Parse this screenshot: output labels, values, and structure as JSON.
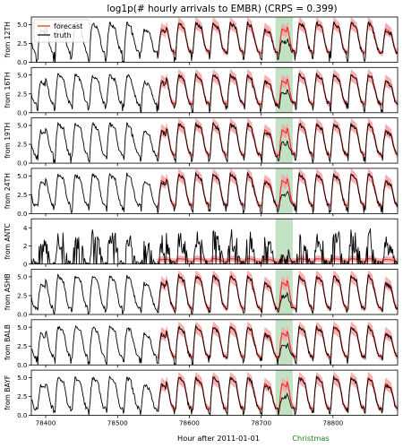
{
  "figure": {
    "title": "log1p(# hourly arrivals to EMBR) (CRPS = 0.399)",
    "xlabel": "Hour after 2011-01-01",
    "annotation": "Christmas"
  },
  "legend": {
    "placement": "upper-left",
    "entries": [
      "forecast",
      "truth"
    ]
  },
  "colors": {
    "forecast": "#e8231d",
    "band": "#f5a3a3",
    "truth": "#000000",
    "highlight": "#b9dcb9"
  },
  "chart_data": {
    "type": "line",
    "xlim": [
      78380,
      78890
    ],
    "x_ticks": [
      78400,
      78500,
      78600,
      78700,
      78800
    ],
    "forecast_start": 78555,
    "highlight_x": [
      78720,
      78744
    ],
    "panels": [
      {
        "ylabel": "from 12TH",
        "ylim": [
          0,
          6
        ],
        "y_ticks": [
          0,
          2.5,
          5.0
        ],
        "y_tick_labels": [
          "0.0",
          "2.5",
          "5.0"
        ],
        "day_peak": 5.2,
        "night_low": 1.0
      },
      {
        "ylabel": "from 16TH",
        "ylim": [
          0,
          6
        ],
        "y_ticks": [
          0,
          2.5,
          5.0
        ],
        "y_tick_labels": [
          "0.0",
          "2.5",
          "5.0"
        ],
        "day_peak": 5.0,
        "night_low": 0.9
      },
      {
        "ylabel": "from 19TH",
        "ylim": [
          0,
          6
        ],
        "y_ticks": [
          0,
          2.5,
          5.0
        ],
        "y_tick_labels": [
          "0.0",
          "2.5",
          "5.0"
        ],
        "day_peak": 5.2,
        "night_low": 0.8
      },
      {
        "ylabel": "from 24TH",
        "ylim": [
          0,
          6
        ],
        "y_ticks": [
          0,
          2.5,
          5.0
        ],
        "y_tick_labels": [
          "0.0",
          "2.5",
          "5.0"
        ],
        "day_peak": 5.2,
        "night_low": 0.8
      },
      {
        "ylabel": "from ANTC",
        "ylim": [
          0,
          5
        ],
        "y_ticks": [
          0,
          2,
          4
        ],
        "y_tick_labels": [
          "0",
          "2",
          "4"
        ],
        "day_peak": 3.2,
        "night_low": 0.0,
        "sparse": true
      },
      {
        "ylabel": "from ASHB",
        "ylim": [
          0,
          6
        ],
        "y_ticks": [
          0,
          2.5,
          5.0
        ],
        "y_tick_labels": [
          "0.0",
          "2.5",
          "5.0"
        ],
        "day_peak": 5.1,
        "night_low": 0.5
      },
      {
        "ylabel": "from BALB",
        "ylim": [
          0,
          6
        ],
        "y_ticks": [
          0,
          2.5,
          5.0
        ],
        "y_tick_labels": [
          "0.0",
          "2.5",
          "5.0"
        ],
        "day_peak": 5.0,
        "night_low": 0.8
      },
      {
        "ylabel": "from BAYF",
        "ylim": [
          0,
          6
        ],
        "y_ticks": [
          0,
          2.5,
          5.0
        ],
        "y_tick_labels": [
          "0.0",
          "2.5",
          "5.0"
        ],
        "day_peak": 5.0,
        "night_low": 0.6
      }
    ]
  }
}
